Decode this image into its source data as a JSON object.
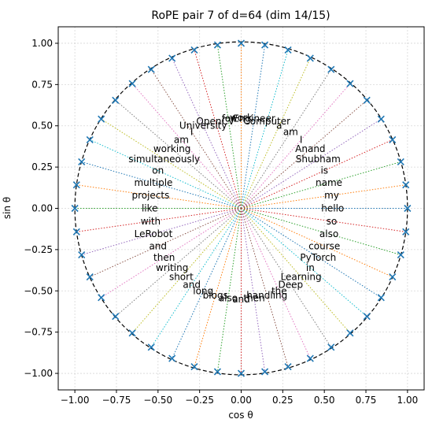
{
  "chart_data": {
    "type": "scatter",
    "title": "RoPE pair 7 of d=64 (dim 14/15)",
    "xlabel": "cos θ",
    "ylabel": "sin θ",
    "xlim": [
      -1.1,
      1.1
    ],
    "ylim": [
      -1.1,
      1.1
    ],
    "xticks": [
      "−1.00",
      "−0.75",
      "−0.50",
      "−0.25",
      "0.00",
      "0.25",
      "0.50",
      "0.75",
      "1.00"
    ],
    "xtick_values": [
      -1.0,
      -0.75,
      -0.5,
      -0.25,
      0.0,
      0.25,
      0.5,
      0.75,
      1.0
    ],
    "yticks": [
      "−1.00",
      "−0.75",
      "−0.50",
      "−0.25",
      "0.00",
      "0.25",
      "0.50",
      "0.75",
      "1.00"
    ],
    "ytick_values": [
      -1.0,
      -0.75,
      -0.5,
      -0.25,
      0.0,
      0.25,
      0.5,
      0.75,
      1.0
    ],
    "grid": true,
    "unit_circle": true,
    "marker_color": "#1f77b4",
    "tokens": [
      "hello",
      "my",
      "name",
      "is",
      "Shubham",
      "Anand",
      "I",
      "am",
      "a",
      "Computer",
      "Engineer",
      "work",
      "for",
      "OpenCV",
      "University",
      "I",
      "am",
      "working",
      "simultaneously",
      "on",
      "multiple",
      "projects",
      "like",
      "with",
      "LeRobot",
      "and",
      "then",
      "writing",
      "short",
      "and",
      "long",
      "blogs",
      "also",
      "and",
      "then",
      "handling",
      "the",
      "Deep",
      "Learning",
      "in",
      "PyTorch",
      "course",
      "also",
      "so"
    ],
    "line_colors": [
      "#1f77b4",
      "#ff7f0e",
      "#2ca02c",
      "#d62728",
      "#9467bd",
      "#8c564b",
      "#e377c2",
      "#7f7f7f",
      "#bcbd22",
      "#17becf"
    ]
  }
}
